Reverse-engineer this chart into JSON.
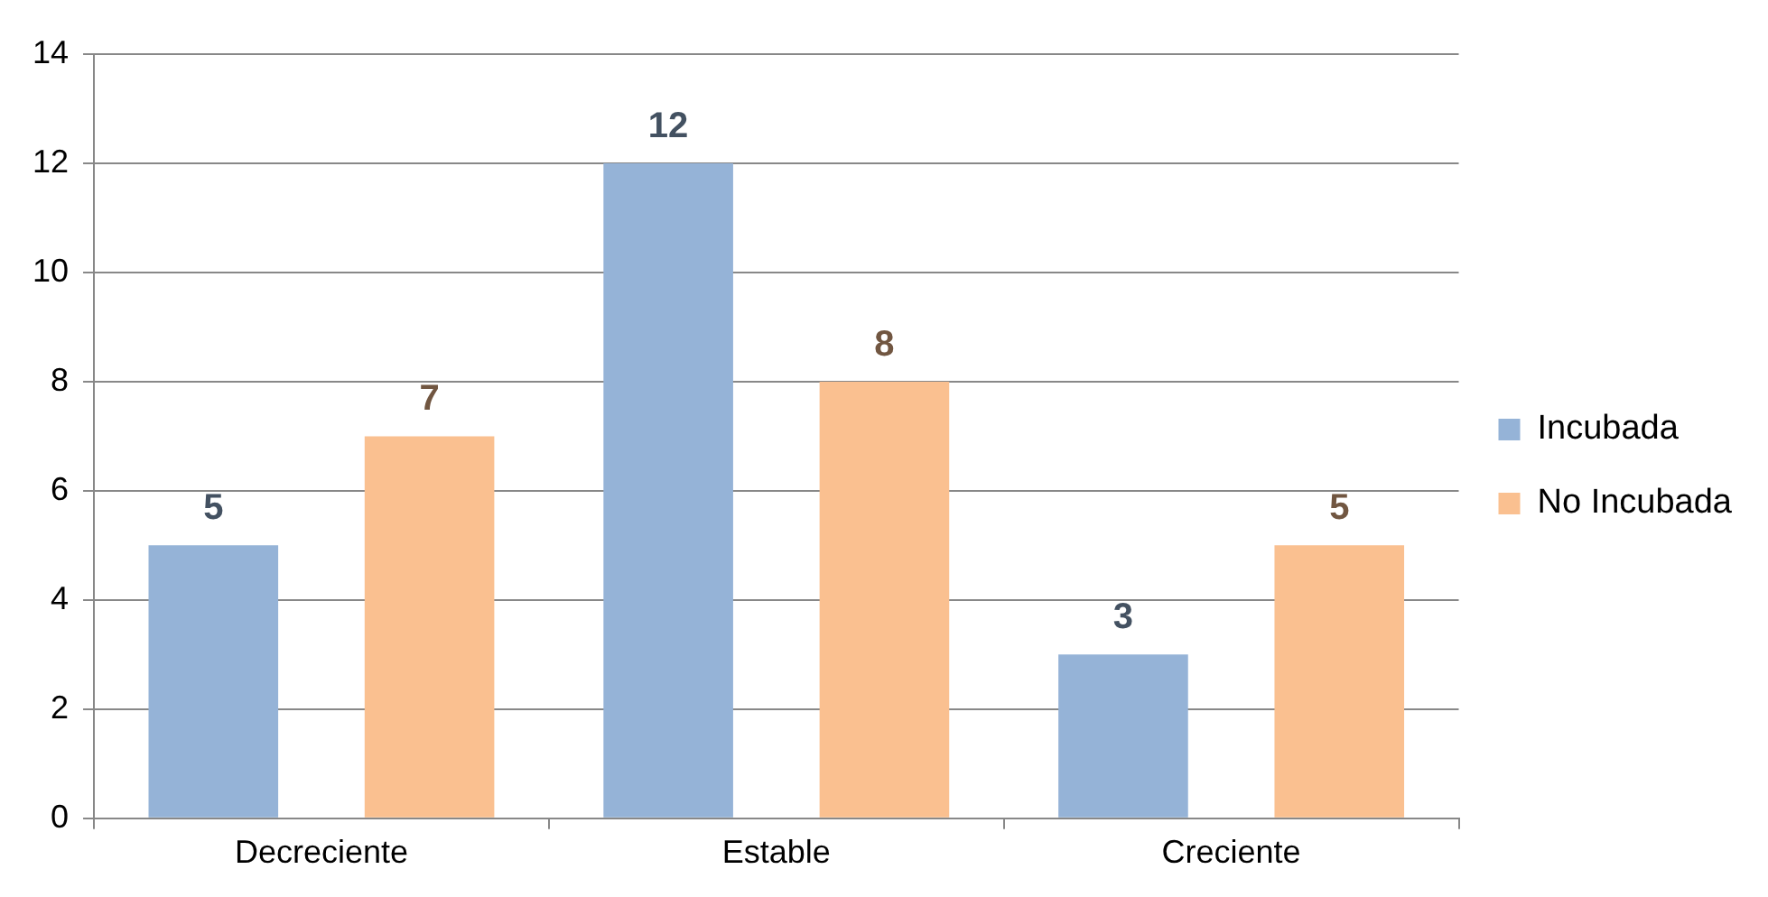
{
  "chart_data": {
    "type": "bar",
    "categories": [
      "Decreciente",
      "Estable",
      "Creciente"
    ],
    "series": [
      {
        "name": "Incubada",
        "color": "#95b3d7",
        "values": [
          5,
          12,
          3
        ]
      },
      {
        "name": "No Incubada",
        "color": "#fac090",
        "values": [
          7,
          8,
          5
        ]
      }
    ],
    "ylim": [
      0,
      14
    ],
    "yticks": [
      0,
      2,
      4,
      6,
      8,
      10,
      12,
      14
    ],
    "grid": "y",
    "legend": "right",
    "data_labels": true
  }
}
